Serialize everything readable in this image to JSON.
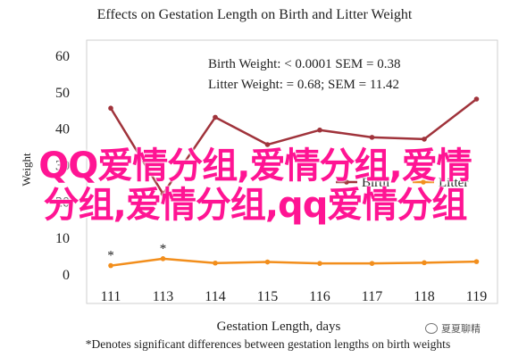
{
  "chart_data": {
    "type": "line",
    "title": "Effects on Gestation Length on Birth and Litter Weight",
    "xlabel": "Gestation Length, days",
    "ylabel": "Weight",
    "categories": [
      "111",
      "113",
      "114",
      "115",
      "116",
      "117",
      "118",
      "119"
    ],
    "yticks": [
      "0",
      "10",
      "20",
      "30",
      "40",
      "50",
      "60"
    ],
    "ylim": [
      0,
      60
    ],
    "grid": false,
    "legend_position": "center-right",
    "series": [
      {
        "name": "Birth",
        "color": "#a0333b",
        "values": [
          45.5,
          22,
          43,
          35.5,
          39.5,
          37.5,
          37,
          48
        ]
      },
      {
        "name": "Litter",
        "color": "#f28e1c",
        "values": [
          2.3,
          4.2,
          3.0,
          3.3,
          2.9,
          2.9,
          3.1,
          3.4
        ]
      }
    ],
    "annotations": [
      {
        "text": "Birth Weight: P < 0.0001 SEM = 0.38",
        "label_html": "Birth Weight: <i>P</i> &lt; 0.0001 SEM = 0.38"
      },
      {
        "text": "Litter Weight: P = 0.68; SEM = 11.42",
        "label_html": "Litter Weight: <i>P</i> = 0.68; SEM = 11.42"
      }
    ],
    "asterisks": [
      {
        "category": "111",
        "value": 2.3,
        "text": "*"
      },
      {
        "category": "113",
        "value": 4.2,
        "text": "*"
      }
    ],
    "footnote": "*Denotes significant differences between gestation lengths on birth weights"
  },
  "overlay_text": {
    "line1": "QQ爱情分组,爱情分组,爱情",
    "line2": "分组,爱情分组,qq爱情分组"
  },
  "watermark": {
    "text": "夏夏聊精"
  }
}
